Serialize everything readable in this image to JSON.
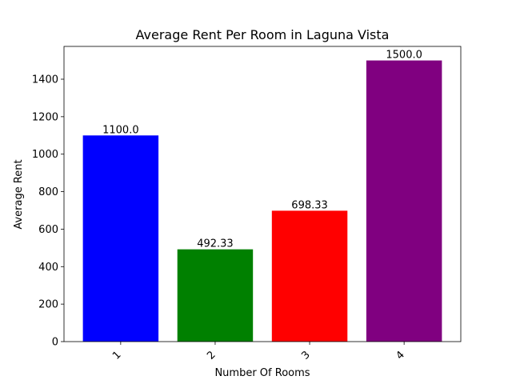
{
  "chart_data": {
    "type": "bar",
    "title": "Average Rent Per Room in Laguna Vista",
    "xlabel": "Number Of Rooms",
    "ylabel": "Average Rent",
    "categories": [
      "1",
      "2",
      "3",
      "4"
    ],
    "values": [
      1100.0,
      492.33,
      698.33,
      1500.0
    ],
    "value_labels": [
      "1100.0",
      "492.33",
      "698.33",
      "1500.0"
    ],
    "colors": [
      "#0000ff",
      "#008000",
      "#ff0000",
      "#800080"
    ],
    "ylim": [
      0,
      1575
    ],
    "yticks": [
      0,
      200,
      400,
      600,
      800,
      1000,
      1200,
      1400
    ],
    "grid": false,
    "legend": "none",
    "xtick_rotation": 45
  }
}
